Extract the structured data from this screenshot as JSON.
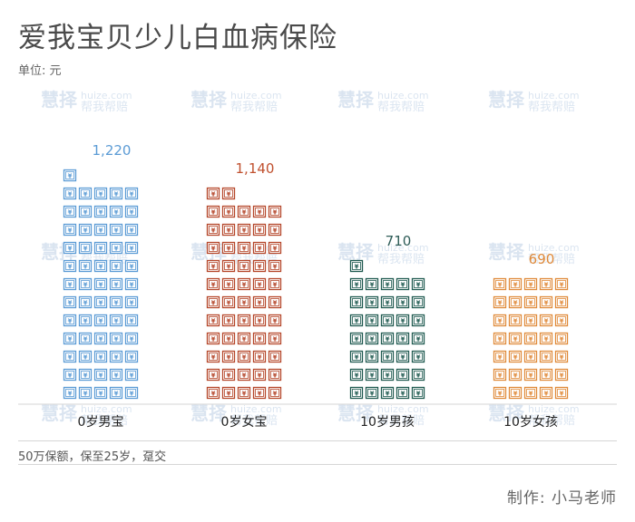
{
  "header": {
    "title": "爱我宝贝少儿白血病保险",
    "unit": "单位: 元"
  },
  "footer": {
    "note": "50万保额，保至25岁，趸交",
    "credit": "制作:  小马老师"
  },
  "watermark": {
    "brand": "慧择",
    "domain": "huize.com",
    "slogan": "帮我帮赔"
  },
  "chart_data": {
    "type": "bar",
    "title": "爱我宝贝少儿白血病保险",
    "ylabel": "单位: 元",
    "icon": "yuan-bill-icon",
    "icon_glyph": "¥",
    "categories": [
      "0岁男宝",
      "0岁女宝",
      "10岁男孩",
      "10岁女孩"
    ],
    "values": [
      1220,
      1140,
      710,
      690
    ],
    "value_labels": [
      "1,220",
      "1,140",
      "710",
      "690"
    ],
    "colors": [
      "#5b9bd5",
      "#b5462a",
      "#1f5a50",
      "#e08a3a"
    ],
    "label_colors": [
      "#5b9bd5",
      "#c0502e",
      "#2f5d58",
      "#e08a3a"
    ],
    "legend": "none",
    "grid": false
  }
}
